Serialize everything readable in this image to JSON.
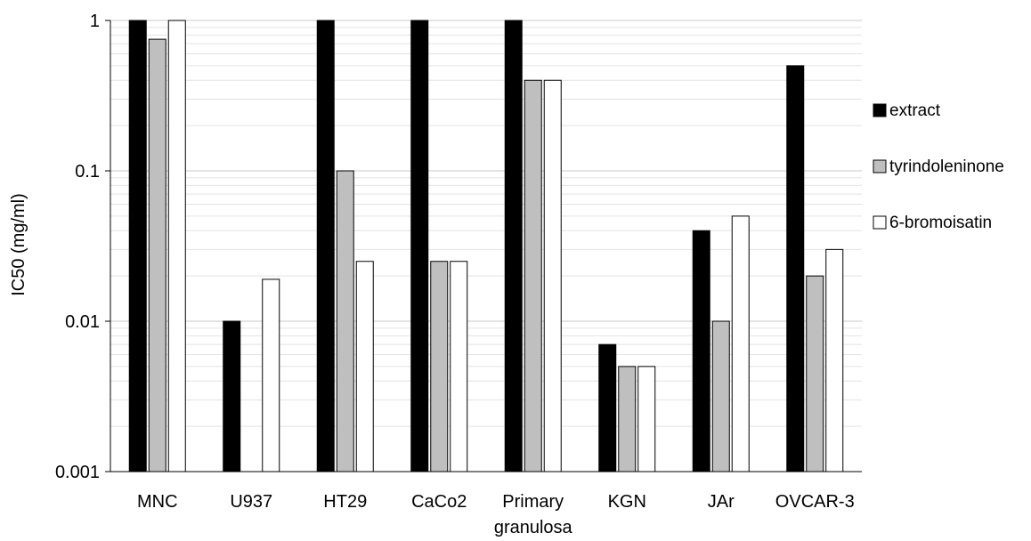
{
  "chart_data": {
    "type": "bar",
    "title": "",
    "xlabel": "",
    "ylabel": "IC50 (mg/ml)",
    "yscale": "log",
    "ylim": [
      0.001,
      1
    ],
    "yticks": [
      {
        "value": 0.001,
        "label": "0.001"
      },
      {
        "value": 0.01,
        "label": "0.01"
      },
      {
        "value": 0.1,
        "label": "0.1"
      },
      {
        "value": 1,
        "label": "1"
      }
    ],
    "grid": true,
    "legend_position": "right",
    "categories": [
      {
        "line1": "MNC",
        "line2": ""
      },
      {
        "line1": "U937",
        "line2": ""
      },
      {
        "line1": "HT29",
        "line2": ""
      },
      {
        "line1": "CaCo2",
        "line2": ""
      },
      {
        "line1": "Primary",
        "line2": "granulosa"
      },
      {
        "line1": "KGN",
        "line2": ""
      },
      {
        "line1": "JAr",
        "line2": ""
      },
      {
        "line1": "OVCAR-3",
        "line2": ""
      }
    ],
    "series": [
      {
        "name": "extract",
        "color": "#000000",
        "values": [
          1,
          0.01,
          1,
          1,
          1,
          0.007,
          0.04,
          0.5
        ]
      },
      {
        "name": "tyrindoleninone",
        "color": "#bfbfbf",
        "values": [
          0.75,
          null,
          0.1,
          0.025,
          0.4,
          0.005,
          0.01,
          0.02
        ]
      },
      {
        "name": "6-bromoisatin",
        "color": "#ffffff",
        "values": [
          1,
          0.019,
          0.025,
          0.025,
          0.4,
          0.005,
          0.05,
          0.03
        ]
      }
    ]
  }
}
